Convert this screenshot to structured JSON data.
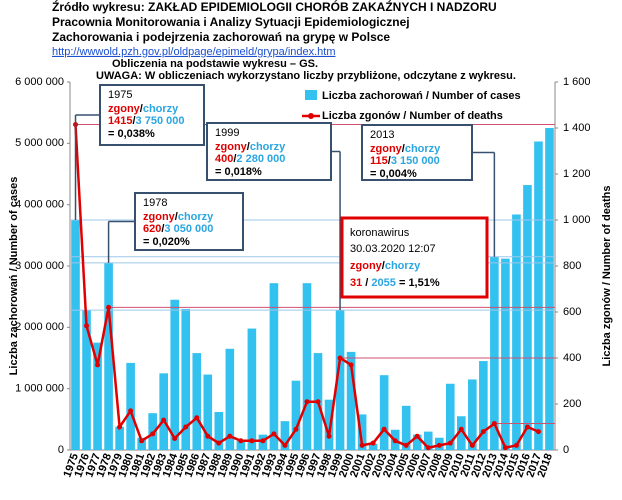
{
  "header": {
    "line1": "Źródło wykresu:  ZAKŁAD EPIDEMIOLOGII CHORÓB ZAKAŹNYCH I NADZORU",
    "line2": "Pracownia Monitorowania i Analizy Sytuacji Epidemiologicznej",
    "line3": "Zachorowania i podejrzenia zachorowań na grypę w Polsce",
    "link": "http://wwwold.pzh.gov.pl/oldpage/epimeld/grypa/index.htm",
    "note1": "Obliczenia na podstawie wykresu – GS.",
    "note2": "UWAGA:   W obliczeniach wykorzystano liczby przybliżone, odczytane z wykresu."
  },
  "chart_data": {
    "type": "bar-line",
    "ylabel": "Liczba zachorowań  /  Number of cases",
    "y2label": "Liczba zgonów  /  Number of deaths",
    "categories": [
      "1975",
      "1976",
      "1977",
      "1978",
      "1979",
      "1980",
      "1981",
      "1982",
      "1983",
      "1984",
      "1985",
      "1986",
      "1987",
      "1988",
      "1989",
      "1990",
      "1991",
      "1992",
      "1993",
      "1994",
      "1995",
      "1996",
      "1997",
      "1998",
      "1999",
      "2000",
      "2001",
      "2002",
      "2003",
      "2004",
      "2005",
      "2006",
      "2007",
      "2008",
      "2009",
      "2010",
      "2011",
      "2012",
      "2013",
      "2014",
      "2015",
      "2016",
      "2017",
      "2018"
    ],
    "series": [
      {
        "name": "Liczba zachorowań / Number of cases",
        "color": "#33c1f0",
        "values": [
          3750000,
          2280000,
          1750000,
          3050000,
          380000,
          1420000,
          200000,
          600000,
          1250000,
          2450000,
          2300000,
          1580000,
          1230000,
          620000,
          1650000,
          150000,
          1980000,
          250000,
          2720000,
          470000,
          1130000,
          2720000,
          1580000,
          820000,
          2280000,
          1600000,
          580000,
          100000,
          1220000,
          330000,
          720000,
          250000,
          300000,
          200000,
          1080000,
          550000,
          1150000,
          1450000,
          3150000,
          3120000,
          3840000,
          4320000,
          5030000,
          5250000
        ]
      },
      {
        "name": "Liczba zgonów / Number of deaths",
        "color": "#e00000",
        "axis": "y2",
        "values": [
          1415,
          540,
          370,
          620,
          100,
          170,
          40,
          70,
          130,
          50,
          100,
          140,
          60,
          30,
          60,
          40,
          40,
          40,
          70,
          20,
          90,
          210,
          210,
          60,
          400,
          370,
          20,
          30,
          90,
          40,
          20,
          60,
          10,
          20,
          30,
          90,
          20,
          80,
          115,
          10,
          20,
          100,
          80,
          null
        ]
      }
    ],
    "ylim": [
      0,
      6000000
    ],
    "yticks": [
      0,
      {
        "value": 1000000,
        "label": "1 000 000"
      },
      {
        "value": 2000000,
        "label": "2 000 000"
      },
      {
        "value": 3000000,
        "label": "3 000 000"
      },
      {
        "value": 4000000,
        "label": "4 000 000"
      },
      {
        "value": 5000000,
        "label": "5 000 000"
      },
      {
        "value": 6000000,
        "label": "6 000 000"
      }
    ],
    "y2lim": [
      0,
      1600
    ],
    "y2ticks": [
      0,
      200,
      400,
      600,
      800,
      {
        "value": 1000,
        "label": "1 000"
      },
      {
        "value": 1200,
        "label": "1 200"
      },
      {
        "value": 1400,
        "label": "1 400"
      },
      {
        "value": 1600,
        "label": "1 600"
      }
    ],
    "annotations": [
      {
        "year": "1975",
        "deaths_label": "zgony",
        "slash": "/",
        "cases_label": "chorzy",
        "deaths": "1415",
        "slash2": "/",
        "cases": "3 750 000",
        "ratio": "= 0,038%"
      },
      {
        "year": "1978",
        "deaths_label": "zgony",
        "slash": "/",
        "cases_label": "chorzy",
        "deaths": "620",
        "slash2": "/",
        "cases": "3 050 000",
        "ratio": "= 0,020%"
      },
      {
        "year": "1999",
        "deaths_label": "zgony",
        "slash": "/",
        "cases_label": "chorzy",
        "deaths": "400",
        "slash2": "/",
        "cases": "2 280 000",
        "ratio": "= 0,018%"
      },
      {
        "year": "2013",
        "deaths_label": "zgony",
        "slash": "/",
        "cases_label": "chorzy",
        "deaths": "115",
        "slash2": "/",
        "cases": "3 150 000",
        "ratio": "= 0,004%"
      }
    ],
    "corona": {
      "title": "koronawirus",
      "datetime": "30.03.2020  12:07",
      "deaths_label": "zgony",
      "slash": "/",
      "cases_label": "chorzy",
      "deaths": "31",
      "slash2": " / ",
      "cases": "2055",
      "ratio": " = 1,51%"
    }
  }
}
